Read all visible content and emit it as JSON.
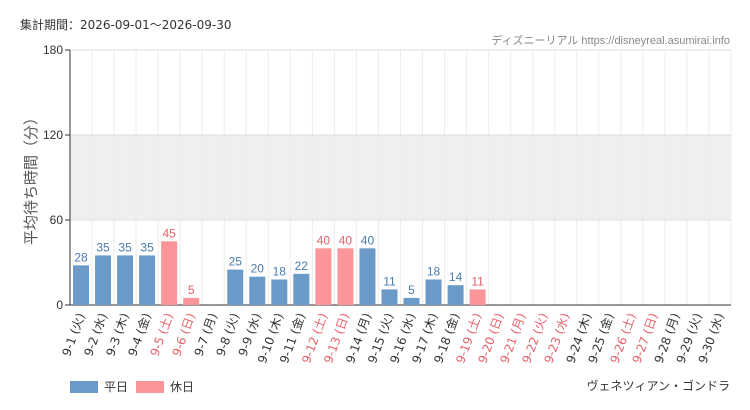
{
  "header": {
    "period": "集計期間：2026-09-01～2026-09-30",
    "source": "ディズニーリアル https://disneyreal.asumirai.info"
  },
  "legend": {
    "weekday_label": "平日",
    "holiday_label": "休日"
  },
  "footer": {
    "attraction_name": "ヴェネツィアン・ゴンドラ"
  },
  "colors": {
    "weekday": "#6b9ac9",
    "weekday_text": "#4a7cb0",
    "holiday": "#fa959a",
    "holiday_text": "#e8606a",
    "band": "#efefef",
    "axis": "#333333"
  },
  "chart_data": {
    "type": "bar",
    "ylabel": "平均待ち時間（分）",
    "ylim": [
      0,
      180
    ],
    "yticks": [
      0,
      60,
      120,
      180
    ],
    "shaded_band": [
      60,
      120
    ],
    "grid": true,
    "legend_position": "bottom-left",
    "categories": [
      "9-1 (火)",
      "9-2 (水)",
      "9-3 (木)",
      "9-4 (金)",
      "9-5 (土)",
      "9-6 (日)",
      "9-7 (月)",
      "9-8 (火)",
      "9-9 (水)",
      "9-10 (木)",
      "9-11 (金)",
      "9-12 (土)",
      "9-13 (日)",
      "9-14 (月)",
      "9-15 (火)",
      "9-16 (水)",
      "9-17 (木)",
      "9-18 (金)",
      "9-19 (土)",
      "9-20 (日)",
      "9-21 (月)",
      "9-22 (火)",
      "9-23 (水)",
      "9-24 (木)",
      "9-25 (金)",
      "9-26 (土)",
      "9-27 (日)",
      "9-28 (月)",
      "9-29 (火)",
      "9-30 (水)"
    ],
    "values": [
      28,
      35,
      35,
      35,
      45,
      5,
      null,
      25,
      20,
      18,
      22,
      40,
      40,
      40,
      11,
      5,
      18,
      14,
      11,
      null,
      null,
      null,
      null,
      null,
      null,
      null,
      null,
      null,
      null,
      null
    ],
    "holiday": [
      false,
      false,
      false,
      false,
      true,
      true,
      false,
      false,
      false,
      false,
      false,
      true,
      true,
      false,
      false,
      false,
      false,
      false,
      true,
      true,
      true,
      true,
      true,
      false,
      false,
      true,
      true,
      false,
      false,
      false
    ],
    "series": [
      {
        "name": "平日"
      },
      {
        "name": "休日"
      }
    ]
  }
}
